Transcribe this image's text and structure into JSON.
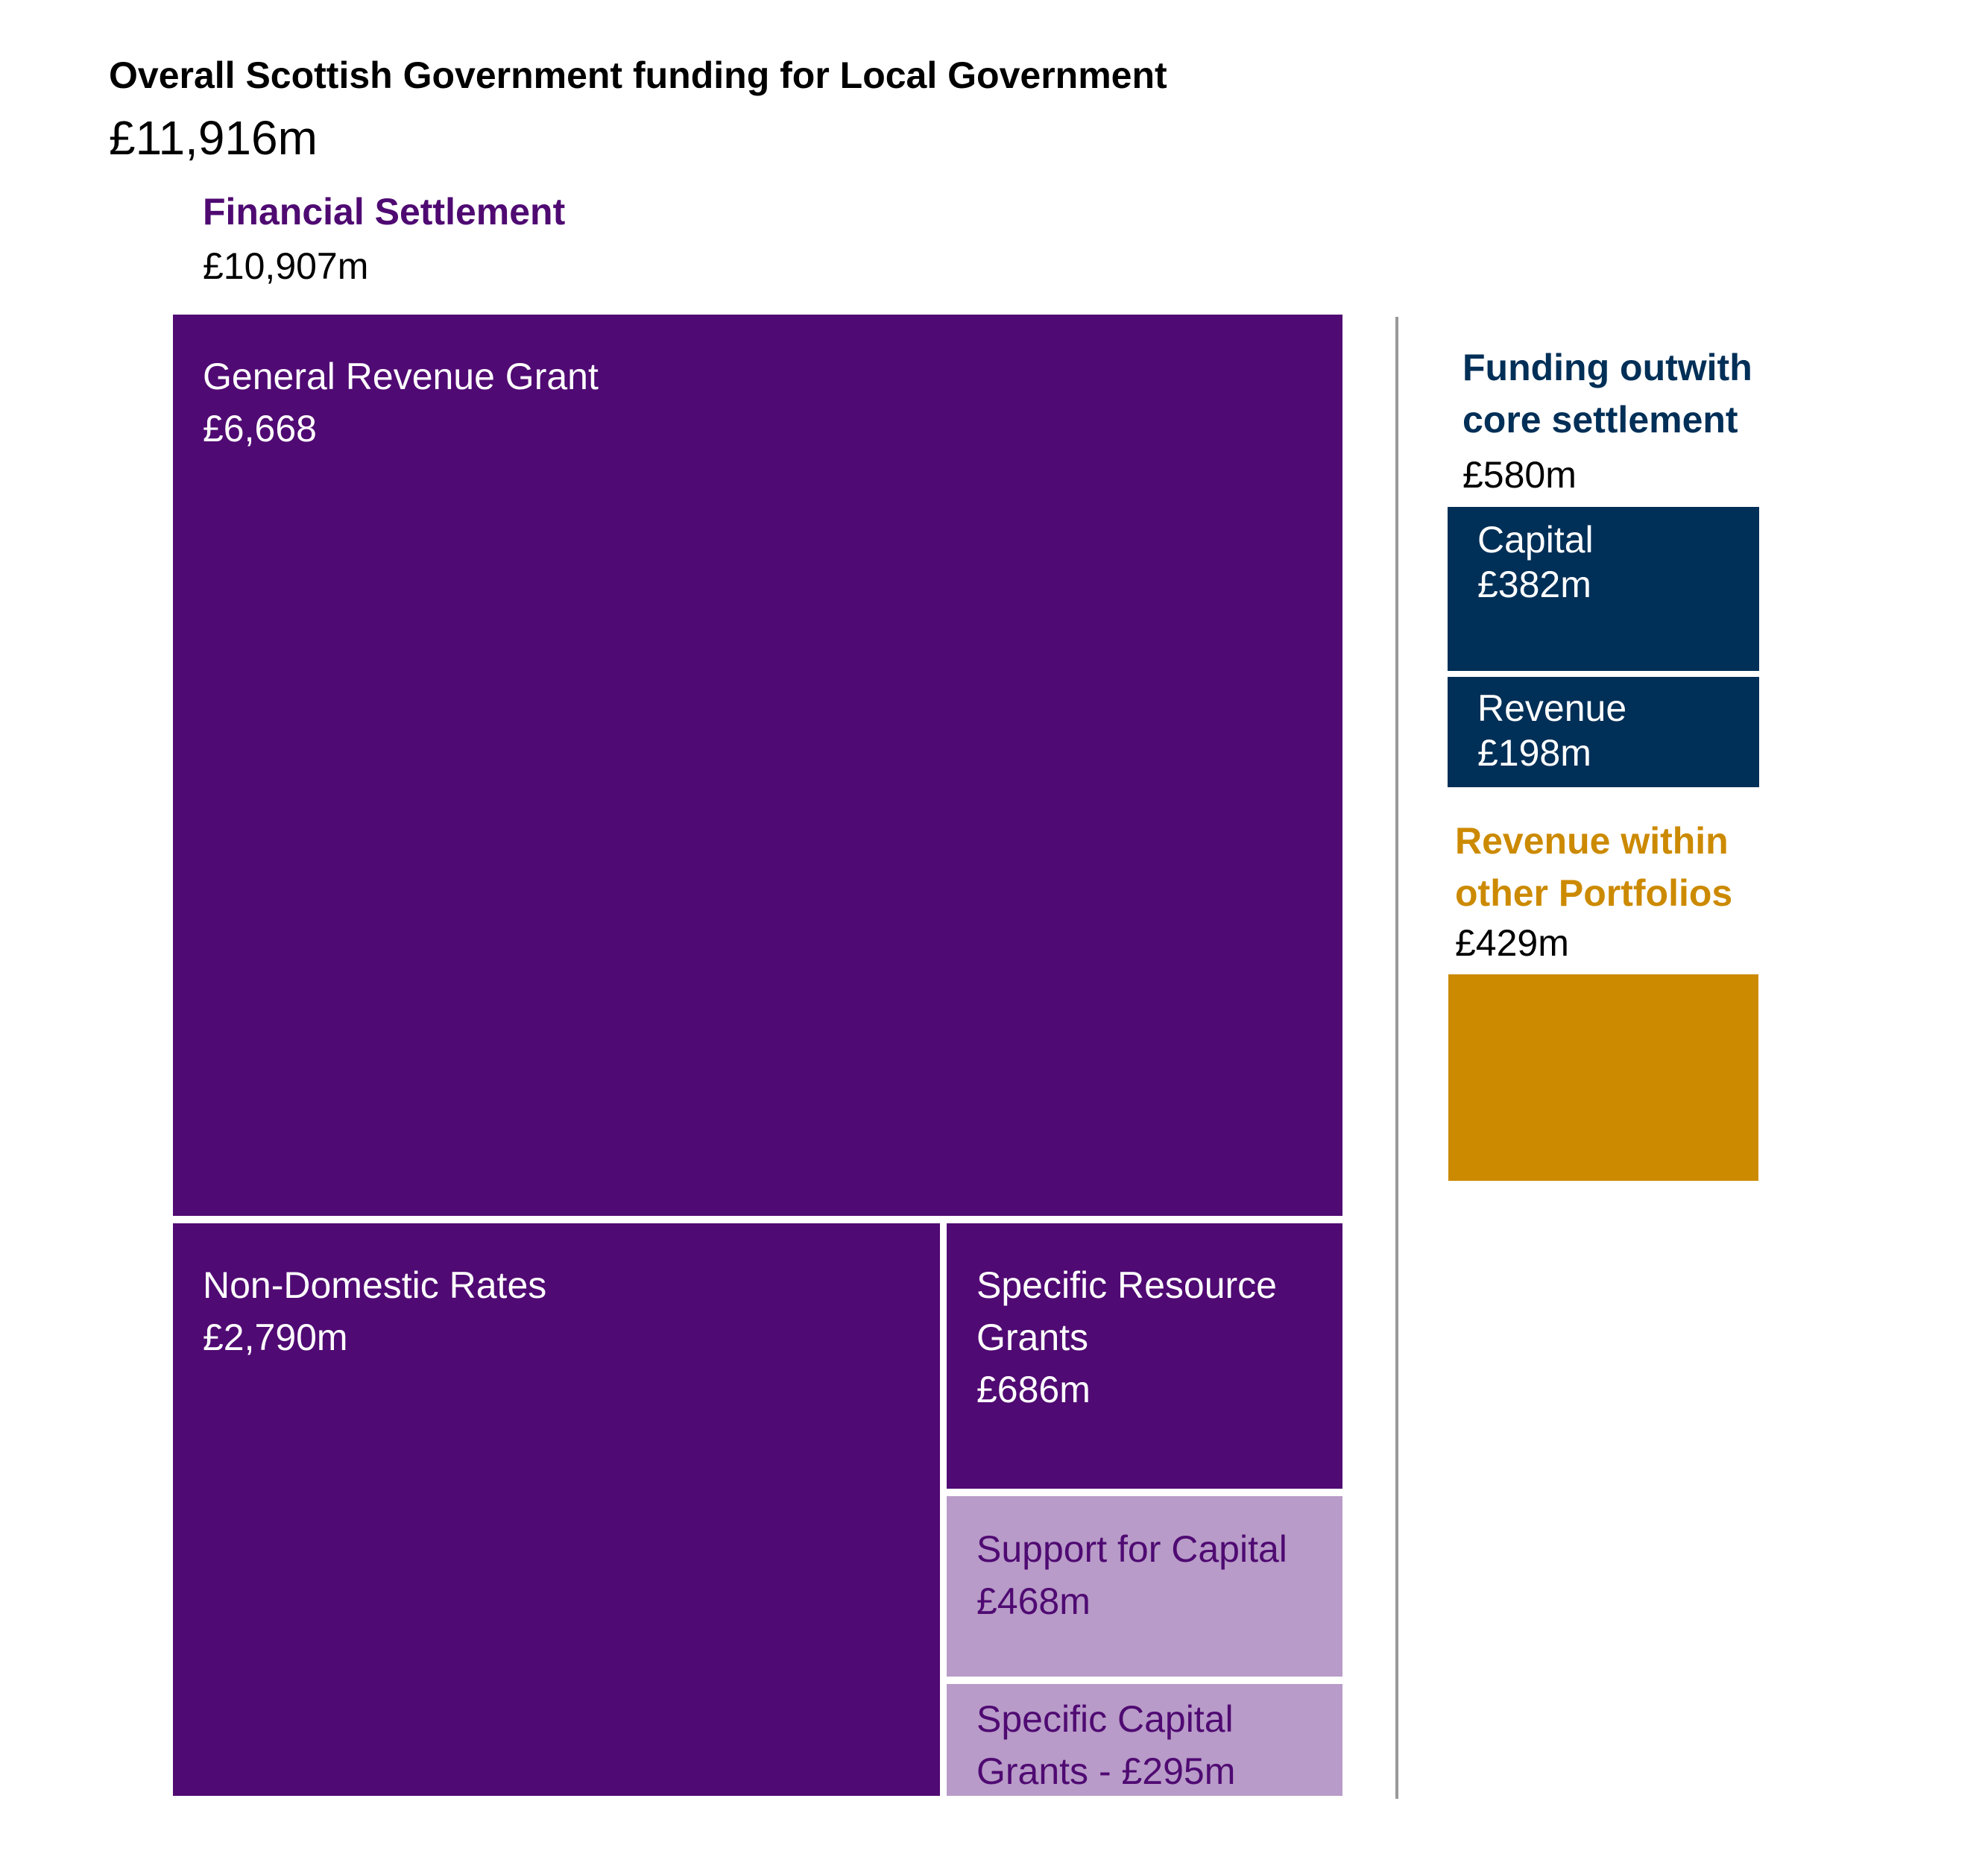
{
  "header": {
    "title": "Overall Scottish Government funding for Local Government",
    "total": "£11,916m"
  },
  "settlement": {
    "title": "Financial Settlement",
    "total": "£10,907m"
  },
  "outwith": {
    "title_line1": "Funding outwith",
    "title_line2": "core settlement",
    "total": "£580m"
  },
  "other": {
    "title_line1": "Revenue within",
    "title_line2": "other Portfolios",
    "total": "£429m"
  },
  "colors": {
    "settlement_dark": "#500a73",
    "settlement_light": "#b89bc8",
    "outwith": "#002f57",
    "other": "#cc8a00"
  },
  "chart_data": {
    "type": "treemap",
    "title": "Overall Scottish Government funding for Local Government",
    "unit": "£m",
    "total": 11916,
    "groups": [
      {
        "name": "Financial Settlement",
        "total": 10907,
        "items": [
          {
            "name": "General Revenue Grant",
            "value": 6668,
            "label_lines": [
              "General Revenue Grant",
              "£6,668"
            ]
          },
          {
            "name": "Non-Domestic Rates",
            "value": 2790,
            "label_lines": [
              "Non-Domestic Rates",
              "£2,790m"
            ]
          },
          {
            "name": "Specific Resource Grants",
            "value": 686,
            "label_lines": [
              "Specific Resource",
              "Grants",
              "£686m"
            ]
          },
          {
            "name": "Support for Capital",
            "value": 468,
            "label_lines": [
              "Support for Capital",
              "£468m"
            ]
          },
          {
            "name": "Specific Capital Grants",
            "value": 295,
            "label_lines": [
              "Specific Capital",
              "Grants - £295m"
            ]
          }
        ]
      },
      {
        "name": "Funding outwith core settlement",
        "total": 580,
        "items": [
          {
            "name": "Capital",
            "value": 382,
            "label_lines": [
              "Capital",
              "£382m"
            ]
          },
          {
            "name": "Revenue",
            "value": 198,
            "label_lines": [
              "Revenue",
              "£198m"
            ]
          }
        ]
      },
      {
        "name": "Revenue within other Portfolios",
        "total": 429,
        "items": [
          {
            "name": "Revenue within other Portfolios",
            "value": 429
          }
        ]
      }
    ]
  }
}
